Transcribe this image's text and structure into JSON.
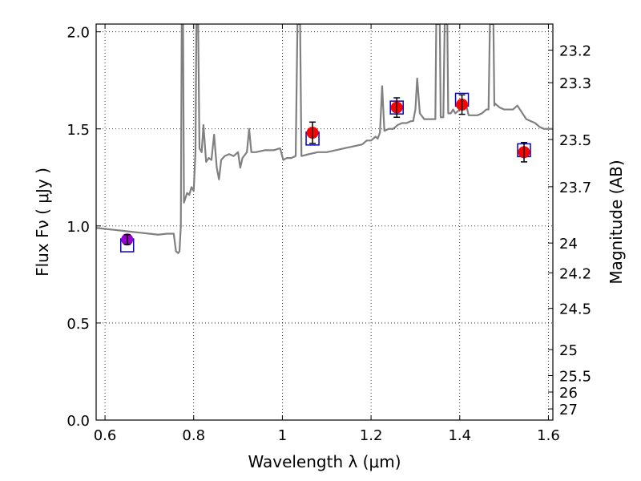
{
  "chart_data": {
    "type": "line",
    "xlabel": "Wavelength  λ (μm)",
    "ylabel": "Flux  Fν  ( μJy )",
    "ylabel_right": "Magnitude (AB)",
    "xlim": [
      0.58,
      1.61
    ],
    "ylim": [
      0.0,
      2.04
    ],
    "x_ticks": [
      0.6,
      0.8,
      1.0,
      1.2,
      1.4,
      1.6
    ],
    "x_tick_labels": [
      "0.6",
      "0.8",
      "1",
      "1.2",
      "1.4",
      "1.6"
    ],
    "y_ticks": [
      0.0,
      0.5,
      1.0,
      1.5,
      2.0
    ],
    "y_tick_labels": [
      "0.0",
      "0.5",
      "1.0",
      "1.5",
      "2.0"
    ],
    "mag_ticks": [
      "23.2",
      "23.3",
      "23.5",
      "23.7",
      "24",
      "24.2",
      "24.5",
      "25",
      "25.5",
      "26",
      "27"
    ],
    "grid": true,
    "colors": {
      "model": "#808080",
      "observed": "#ff0000",
      "model_phot": "#0000cc",
      "first_point": "#9900cc",
      "errorbar": "#000000"
    },
    "series": [
      {
        "kind": "model-spectrum",
        "points": [
          [
            0.58,
            0.99
          ],
          [
            0.6,
            0.985
          ],
          [
            0.62,
            0.98
          ],
          [
            0.64,
            0.975
          ],
          [
            0.66,
            0.97
          ],
          [
            0.68,
            0.965
          ],
          [
            0.7,
            0.96
          ],
          [
            0.72,
            0.955
          ],
          [
            0.74,
            0.96
          ],
          [
            0.755,
            0.96
          ],
          [
            0.76,
            0.87
          ],
          [
            0.765,
            0.86
          ],
          [
            0.768,
            0.87
          ],
          [
            0.771,
            1.0
          ],
          [
            0.773,
            2.04
          ],
          [
            0.776,
            2.04
          ],
          [
            0.778,
            1.12
          ],
          [
            0.785,
            1.17
          ],
          [
            0.79,
            1.16
          ],
          [
            0.795,
            1.2
          ],
          [
            0.8,
            1.18
          ],
          [
            0.804,
            1.38
          ],
          [
            0.806,
            2.04
          ],
          [
            0.81,
            2.04
          ],
          [
            0.813,
            1.4
          ],
          [
            0.818,
            1.38
          ],
          [
            0.822,
            1.52
          ],
          [
            0.828,
            1.33
          ],
          [
            0.834,
            1.35
          ],
          [
            0.84,
            1.34
          ],
          [
            0.846,
            1.47
          ],
          [
            0.852,
            1.3
          ],
          [
            0.857,
            1.24
          ],
          [
            0.862,
            1.34
          ],
          [
            0.87,
            1.36
          ],
          [
            0.88,
            1.37
          ],
          [
            0.89,
            1.36
          ],
          [
            0.9,
            1.38
          ],
          [
            0.905,
            1.3
          ],
          [
            0.91,
            1.35
          ],
          [
            0.92,
            1.38
          ],
          [
            0.925,
            1.5
          ],
          [
            0.93,
            1.38
          ],
          [
            0.94,
            1.38
          ],
          [
            0.96,
            1.39
          ],
          [
            0.98,
            1.39
          ],
          [
            0.995,
            1.4
          ],
          [
            1.002,
            1.34
          ],
          [
            1.01,
            1.35
          ],
          [
            1.02,
            1.35
          ],
          [
            1.03,
            1.36
          ],
          [
            1.034,
            2.04
          ],
          [
            1.04,
            2.04
          ],
          [
            1.043,
            1.36
          ],
          [
            1.06,
            1.37
          ],
          [
            1.08,
            1.38
          ],
          [
            1.1,
            1.38
          ],
          [
            1.12,
            1.39
          ],
          [
            1.14,
            1.4
          ],
          [
            1.16,
            1.41
          ],
          [
            1.18,
            1.42
          ],
          [
            1.19,
            1.44
          ],
          [
            1.2,
            1.44
          ],
          [
            1.21,
            1.46
          ],
          [
            1.215,
            1.45
          ],
          [
            1.22,
            1.48
          ],
          [
            1.225,
            1.72
          ],
          [
            1.23,
            1.49
          ],
          [
            1.24,
            1.5
          ],
          [
            1.25,
            1.5
          ],
          [
            1.26,
            1.52
          ],
          [
            1.27,
            1.53
          ],
          [
            1.28,
            1.53
          ],
          [
            1.29,
            1.54
          ],
          [
            1.295,
            1.54
          ],
          [
            1.3,
            1.6
          ],
          [
            1.304,
            1.76
          ],
          [
            1.31,
            1.58
          ],
          [
            1.32,
            1.55
          ],
          [
            1.34,
            1.55
          ],
          [
            1.345,
            1.55
          ],
          [
            1.347,
            2.04
          ],
          [
            1.355,
            2.04
          ],
          [
            1.357,
            1.56
          ],
          [
            1.363,
            1.56
          ],
          [
            1.366,
            2.04
          ],
          [
            1.372,
            2.04
          ],
          [
            1.374,
            1.58
          ],
          [
            1.38,
            1.58
          ],
          [
            1.385,
            1.6
          ],
          [
            1.39,
            1.58
          ],
          [
            1.4,
            1.6
          ],
          [
            1.41,
            1.6
          ],
          [
            1.415,
            1.62
          ],
          [
            1.42,
            1.57
          ],
          [
            1.43,
            1.57
          ],
          [
            1.44,
            1.57
          ],
          [
            1.45,
            1.58
          ],
          [
            1.46,
            1.6
          ],
          [
            1.465,
            1.6
          ],
          [
            1.468,
            2.04
          ],
          [
            1.476,
            2.04
          ],
          [
            1.478,
            1.62
          ],
          [
            1.48,
            1.63
          ],
          [
            1.49,
            1.61
          ],
          [
            1.5,
            1.6
          ],
          [
            1.52,
            1.6
          ],
          [
            1.53,
            1.62
          ],
          [
            1.55,
            1.55
          ],
          [
            1.57,
            1.53
          ],
          [
            1.58,
            1.51
          ],
          [
            1.59,
            1.5
          ],
          [
            1.6,
            1.5
          ],
          [
            1.61,
            1.5
          ]
        ]
      },
      {
        "kind": "model-photometry",
        "marker": "open-square",
        "x": [
          0.65,
          1.068,
          1.258,
          1.405,
          1.545
        ],
        "y": [
          0.9,
          1.45,
          1.61,
          1.65,
          1.39
        ]
      },
      {
        "kind": "observed",
        "marker": "filled-circle",
        "x": [
          0.65,
          1.068,
          1.258,
          1.405,
          1.545
        ],
        "y": [
          0.93,
          1.48,
          1.61,
          1.625,
          1.38
        ],
        "yerr": [
          0.025,
          0.055,
          0.05,
          0.05,
          0.05
        ]
      }
    ]
  }
}
